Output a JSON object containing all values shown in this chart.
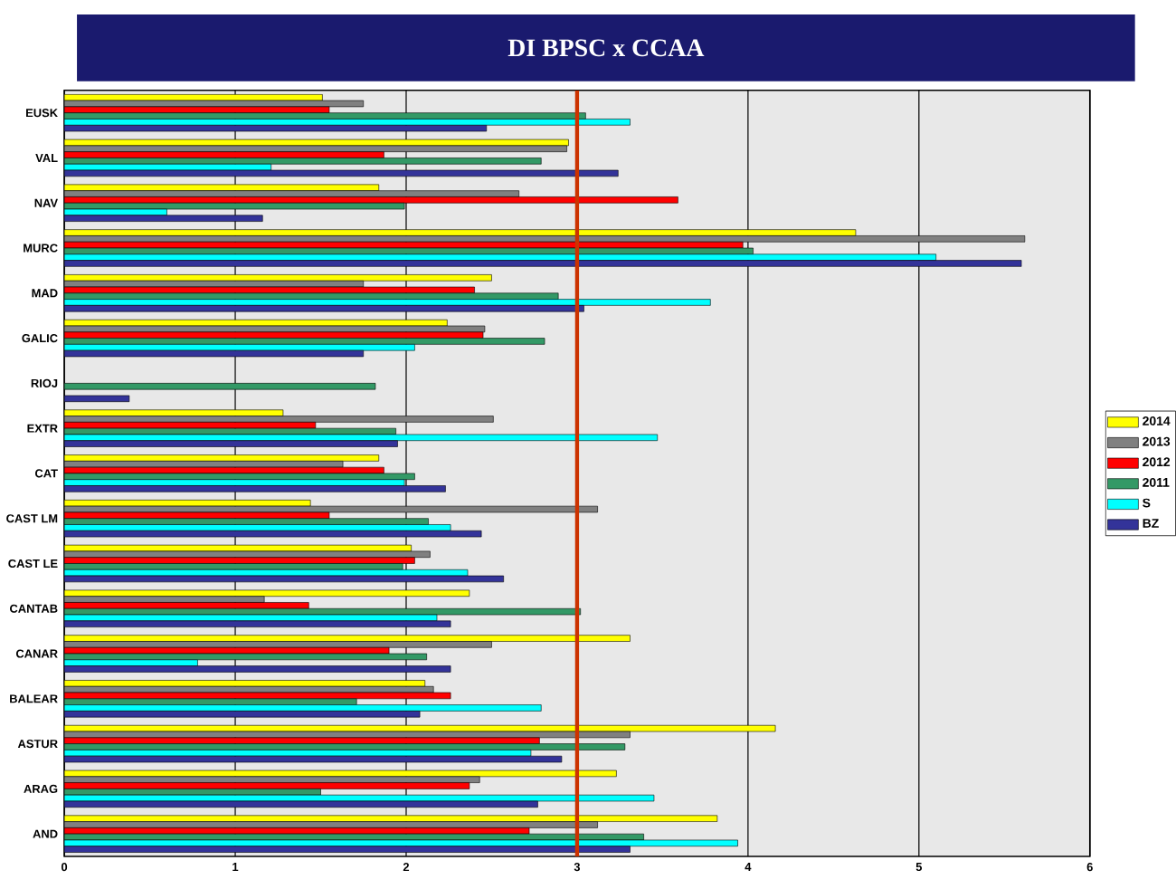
{
  "chart_data": {
    "type": "bar",
    "orientation": "horizontal",
    "title": "DI BPSC x  CCAA",
    "categories": [
      "EUSK",
      "VAL",
      "NAV",
      "MURC",
      "MAD",
      "GALIC",
      "RIOJ",
      "EXTR",
      "CAT",
      "CAST LM",
      "CAST LE",
      "CANTAB",
      "CANAR",
      "BALEAR",
      "ASTUR",
      "ARAG",
      "AND"
    ],
    "series": [
      {
        "name": "2014",
        "color": "#ffff00",
        "values": [
          1.51,
          2.95,
          1.84,
          4.63,
          2.5,
          2.24,
          null,
          1.28,
          1.84,
          1.44,
          2.03,
          2.37,
          3.31,
          2.11,
          4.16,
          3.23,
          3.82
        ]
      },
      {
        "name": "2013",
        "color": "#808080",
        "values": [
          1.75,
          2.94,
          2.66,
          5.62,
          1.75,
          2.46,
          null,
          2.51,
          1.63,
          3.12,
          2.14,
          1.17,
          2.5,
          2.16,
          3.31,
          2.43,
          3.12
        ]
      },
      {
        "name": "2012",
        "color": "#ff0000",
        "values": [
          1.55,
          1.87,
          3.59,
          3.97,
          2.4,
          2.45,
          null,
          1.47,
          1.87,
          1.55,
          2.05,
          1.43,
          1.9,
          2.26,
          2.78,
          2.37,
          2.72
        ]
      },
      {
        "name": "2011",
        "color": "#339966",
        "values": [
          3.05,
          2.79,
          1.99,
          4.03,
          2.89,
          2.81,
          1.82,
          1.94,
          2.05,
          2.13,
          1.98,
          3.02,
          2.12,
          1.71,
          3.28,
          1.5,
          3.39
        ]
      },
      {
        "name": "S",
        "color": "#00ffff",
        "values": [
          3.31,
          1.21,
          0.6,
          5.1,
          3.78,
          2.05,
          null,
          3.47,
          1.99,
          2.26,
          2.36,
          2.18,
          0.78,
          2.79,
          2.73,
          3.45,
          3.94
        ]
      },
      {
        "name": "BZ",
        "color": "#333399",
        "values": [
          2.47,
          3.24,
          1.16,
          5.6,
          3.04,
          1.75,
          0.38,
          1.95,
          2.23,
          2.44,
          2.57,
          2.26,
          2.26,
          2.08,
          2.91,
          2.77,
          3.31
        ]
      }
    ],
    "xlim": [
      0,
      6
    ],
    "xticks": [
      0,
      1,
      2,
      3,
      4,
      5,
      6
    ],
    "grid": "x",
    "legend": "right",
    "ref_lines": [
      {
        "axis": "x",
        "value": 3,
        "color": "#cc3300"
      }
    ]
  }
}
